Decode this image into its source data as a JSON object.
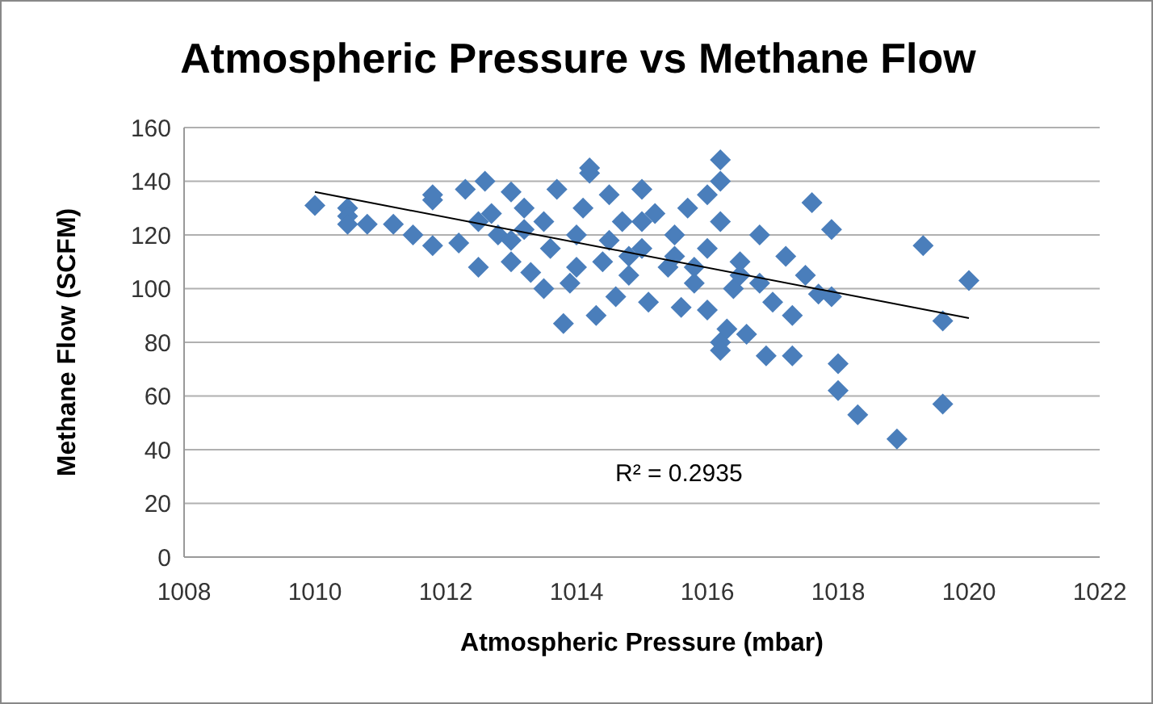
{
  "chart_data": {
    "type": "scatter",
    "title": "Atmospheric Pressure vs Methane Flow",
    "xlabel": "Atmospheric Pressure (mbar)",
    "ylabel": "Methane Flow (SCFM)",
    "xlim": [
      1008,
      1022
    ],
    "xticks": [
      1008,
      1010,
      1012,
      1014,
      1016,
      1018,
      1020,
      1022
    ],
    "ylim": [
      0,
      160
    ],
    "yticks": [
      0,
      20,
      40,
      60,
      80,
      100,
      120,
      140,
      160
    ],
    "grid": "y",
    "legend": false,
    "annotations": [
      "R² = 0.2935"
    ],
    "series": [
      {
        "type": "scatter",
        "color": "#4a7ebb",
        "marker": "diamond",
        "x": [
          1010.0,
          1010.5,
          1010.5,
          1010.5,
          1010.8,
          1011.2,
          1011.5,
          1011.8,
          1011.8,
          1011.8,
          1012.2,
          1012.3,
          1012.5,
          1012.6,
          1012.7,
          1012.8,
          1013.0,
          1013.0,
          1013.2,
          1013.3,
          1013.5,
          1013.6,
          1013.7,
          1013.8,
          1013.9,
          1014.0,
          1014.1,
          1014.2,
          1014.2,
          1014.3,
          1014.4,
          1014.5,
          1014.6,
          1014.7,
          1014.8,
          1015.0,
          1015.0,
          1015.1,
          1015.2,
          1015.4,
          1015.5,
          1015.6,
          1015.7,
          1015.8,
          1016.0,
          1016.0,
          1016.0,
          1016.2,
          1016.2,
          1016.2,
          1016.2,
          1016.2,
          1016.3,
          1016.4,
          1016.5,
          1016.6,
          1016.8,
          1016.9,
          1017.0,
          1017.2,
          1017.3,
          1017.3,
          1017.5,
          1017.6,
          1017.7,
          1017.9,
          1017.9,
          1018.0,
          1018.0,
          1018.3,
          1018.9,
          1019.3,
          1019.6,
          1019.6,
          1020.0,
          1014.5,
          1015.5,
          1013.0,
          1012.5,
          1014.0,
          1016.5,
          1015.0,
          1013.5,
          1014.8,
          1015.8,
          1013.2,
          1016.8
        ],
        "values": [
          131,
          130,
          127,
          124,
          124,
          124,
          120,
          116,
          133,
          135,
          117,
          137,
          108,
          140,
          128,
          120,
          110,
          136,
          130,
          106,
          125,
          115,
          137,
          87,
          102,
          120,
          130,
          143,
          145,
          90,
          110,
          135,
          97,
          125,
          105,
          137,
          115,
          95,
          128,
          108,
          120,
          93,
          130,
          102,
          135,
          115,
          92,
          148,
          140,
          125,
          80,
          77,
          85,
          100,
          110,
          83,
          120,
          75,
          95,
          112,
          75,
          90,
          105,
          132,
          98,
          122,
          97,
          72,
          62,
          53,
          44,
          116,
          88,
          57,
          103,
          118,
          112,
          118,
          125,
          108,
          105,
          125,
          100,
          112,
          108,
          122,
          102
        ]
      },
      {
        "type": "line",
        "color": "#000000",
        "marker": "none",
        "x": [
          1010.0,
          1020.0
        ],
        "values": [
          136,
          89
        ]
      }
    ]
  }
}
